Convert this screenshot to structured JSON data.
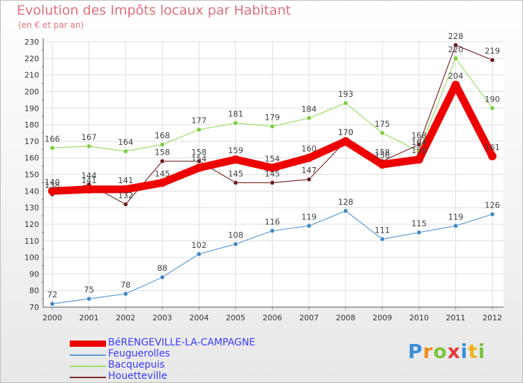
{
  "chart_data": {
    "type": "line",
    "title": "Evolution des Impôts locaux par Habitant",
    "subtitle": "(en € et par an)",
    "xlabel": "",
    "ylabel": "",
    "ylim": [
      70,
      230
    ],
    "yticks": [
      70,
      80,
      90,
      100,
      110,
      120,
      130,
      140,
      150,
      160,
      170,
      180,
      190,
      200,
      210,
      220,
      230
    ],
    "categories": [
      "2000",
      "2001",
      "2002",
      "2003",
      "2004",
      "2005",
      "2006",
      "2007",
      "2008",
      "2009",
      "2010",
      "2011",
      "2012"
    ],
    "grid": true,
    "legend_position": "bottom-left",
    "series": [
      {
        "name": "Feuguerolles",
        "color": "#5b9bd5",
        "marker": "#3f88c5",
        "values": [
          72,
          75,
          78,
          88,
          102,
          108,
          116,
          119,
          128,
          111,
          115,
          119,
          126
        ]
      },
      {
        "name": "Bacquepuis",
        "color": "#99dd66",
        "marker": "#7acc3c",
        "values": [
          166,
          167,
          164,
          168,
          177,
          181,
          179,
          184,
          193,
          175,
          164,
          220,
          190
        ]
      },
      {
        "name": "Houetteville",
        "color": "#7a2a2a",
        "marker": "#6b1c1c",
        "values": [
          138,
          144,
          132,
          158,
          158,
          145,
          145,
          147,
          170,
          158,
          168,
          228,
          219
        ]
      },
      {
        "name": "BéRENGEVILLE-LA-CAMPAGNE",
        "color": "#ee0000",
        "marker": "#ee0000",
        "values": [
          140,
          141,
          141,
          145,
          154,
          159,
          154,
          160,
          170,
          156,
          159,
          204,
          161
        ]
      }
    ]
  },
  "legend": [
    {
      "label": "BéRENGEVILLE-LA-CAMPAGNE",
      "color": "#ee0000"
    },
    {
      "label": "Feuguerolles",
      "color": "#5b9bd5"
    },
    {
      "label": "Bacquepuis",
      "color": "#99dd66"
    },
    {
      "label": "Houetteville",
      "color": "#7a2a2a"
    }
  ],
  "logo": {
    "letters": [
      "P",
      "r",
      "o",
      "x",
      "i",
      "t",
      "i"
    ],
    "colors": [
      "#3b8fd6",
      "#f08a1c",
      "#7cc242",
      "#e23b3b",
      "#3b8fd6",
      "#f0b21c",
      "#7cc242"
    ]
  }
}
